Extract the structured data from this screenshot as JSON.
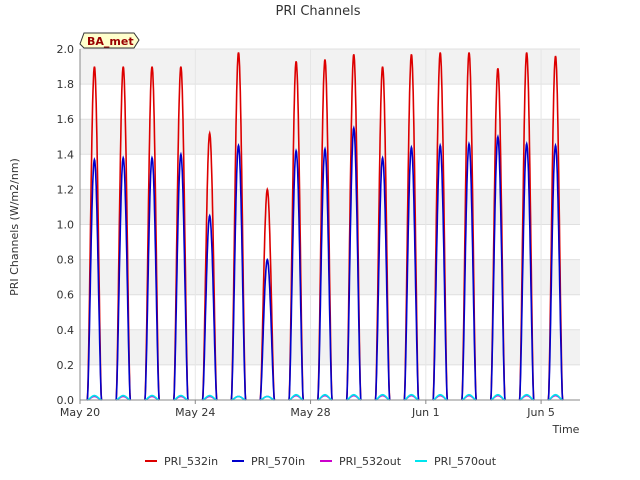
{
  "chart_data": {
    "type": "line",
    "title": "PRI Channels",
    "xlabel": "Time",
    "ylabel": "PRI Channels (W/m2/nm)",
    "badge": "BA_met",
    "ylim": [
      0,
      2.0
    ],
    "yticks": [
      "0.0",
      "0.2",
      "0.4",
      "0.6",
      "0.8",
      "1.0",
      "1.2",
      "1.4",
      "1.6",
      "1.8",
      "2.0"
    ],
    "xlim": [
      0,
      17.35
    ],
    "xticks": [
      {
        "value": 0,
        "label": "May 20"
      },
      {
        "value": 4,
        "label": "May 24"
      },
      {
        "value": 8,
        "label": "May 28"
      },
      {
        "value": 12,
        "label": "Jun 1"
      },
      {
        "value": 16,
        "label": "Jun 5"
      }
    ],
    "days": [
      0,
      1,
      2,
      3,
      4,
      5,
      6,
      7,
      8,
      9,
      10,
      11,
      12,
      13,
      14,
      15,
      16
    ],
    "series": [
      {
        "name": "PRI_532in",
        "color": "#dd0000",
        "daily_peak": [
          1.9,
          1.9,
          1.9,
          1.9,
          1.52,
          1.98,
          1.2,
          1.93,
          1.94,
          1.97,
          1.9,
          1.97,
          1.98,
          1.98,
          1.89,
          1.98,
          1.96
        ]
      },
      {
        "name": "PRI_570in",
        "color": "#0000cc",
        "daily_peak": [
          1.37,
          1.38,
          1.38,
          1.4,
          1.05,
          1.45,
          0.8,
          1.42,
          1.43,
          1.55,
          1.38,
          1.44,
          1.45,
          1.46,
          1.5,
          1.46,
          1.45
        ]
      },
      {
        "name": "PRI_532out",
        "color": "#cc00cc",
        "daily_peak": [
          0.02,
          0.02,
          0.02,
          0.02,
          0.02,
          0.02,
          0.02,
          0.025,
          0.025,
          0.025,
          0.025,
          0.025,
          0.025,
          0.025,
          0.025,
          0.025,
          0.025
        ]
      },
      {
        "name": "PRI_570out",
        "color": "#00e5ee",
        "daily_peak": [
          0.025,
          0.025,
          0.025,
          0.025,
          0.025,
          0.02,
          0.02,
          0.03,
          0.03,
          0.03,
          0.03,
          0.03,
          0.03,
          0.03,
          0.03,
          0.03,
          0.03
        ]
      }
    ],
    "legend_position": "bottom-center",
    "grid": true
  }
}
